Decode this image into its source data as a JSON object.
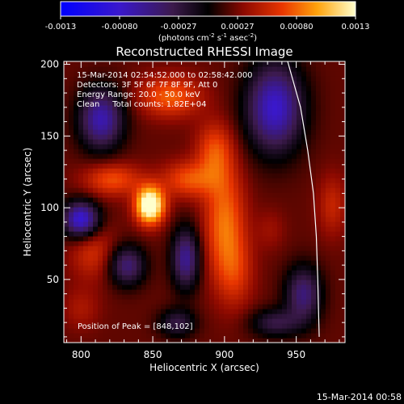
{
  "colorbar": {
    "tick_labels": [
      "-0.0013",
      "-0.00080",
      "-0.00027",
      "0.00027",
      "0.00080",
      "0.0013"
    ],
    "unit_label": "(photons cm-2 s-1 asec-2)",
    "range": [
      -0.0013,
      0.0013
    ]
  },
  "footer": {
    "timestamp": "15-Mar-2014 00:58"
  },
  "chart_data": {
    "type": "heatmap",
    "title": "Reconstructed RHESSI Image",
    "xlabel": "Heliocentric X (arcsec)",
    "ylabel": "Heliocentric Y (arcsec)",
    "xlim": [
      788,
      984
    ],
    "ylim": [
      6,
      202
    ],
    "xticks": [
      "800",
      "850",
      "900",
      "950"
    ],
    "yticks": [
      "50",
      "100",
      "150",
      "200"
    ],
    "xtick_values": [
      800,
      850,
      900,
      950
    ],
    "ytick_values": [
      50,
      100,
      150,
      200
    ],
    "annotations": [
      "15-Mar-2014 02:54:52.000 to 02:58:42.000",
      "Detectors: 3F 5F 6F 7F 8F 9F, Att 0",
      "Energy Range: 20.0 - 50.0 keV",
      "Clean     Total counts: 1.82E+04"
    ],
    "peak_label": "Position of Peak = [848,102]",
    "peak": {
      "x": 848,
      "y": 102,
      "value": 0.0013
    },
    "sources": [
      {
        "x": 848,
        "y": 102,
        "sx": 7,
        "sy": 9,
        "amp": 0.00135
      },
      {
        "x": 822,
        "y": 120,
        "sx": 14,
        "sy": 8,
        "amp": 0.0005
      },
      {
        "x": 875,
        "y": 120,
        "sx": 13,
        "sy": 9,
        "amp": 0.0005
      },
      {
        "x": 900,
        "y": 90,
        "sx": 10,
        "sy": 28,
        "amp": 0.0006
      },
      {
        "x": 893,
        "y": 140,
        "sx": 9,
        "sy": 14,
        "amp": 0.00045
      },
      {
        "x": 862,
        "y": 178,
        "sx": 15,
        "sy": 10,
        "amp": 0.00055
      },
      {
        "x": 808,
        "y": 70,
        "sx": 11,
        "sy": 14,
        "amp": 0.00035
      },
      {
        "x": 800,
        "y": 30,
        "sx": 9,
        "sy": 10,
        "amp": 0.0002
      },
      {
        "x": 908,
        "y": 55,
        "sx": 9,
        "sy": 18,
        "amp": 0.0003
      },
      {
        "x": 975,
        "y": 102,
        "sx": 7,
        "sy": 15,
        "amp": 0.0003
      },
      {
        "x": 932,
        "y": 85,
        "sx": 7,
        "sy": 10,
        "amp": 0.00015
      },
      {
        "x": 800,
        "y": 92,
        "sx": 9,
        "sy": 9,
        "amp": -0.0011
      },
      {
        "x": 814,
        "y": 162,
        "sx": 11,
        "sy": 15,
        "amp": -0.0009
      },
      {
        "x": 832,
        "y": 60,
        "sx": 9,
        "sy": 10,
        "amp": -0.0007
      },
      {
        "x": 873,
        "y": 65,
        "sx": 7,
        "sy": 15,
        "amp": -0.0008
      },
      {
        "x": 935,
        "y": 170,
        "sx": 14,
        "sy": 22,
        "amp": -0.001
      },
      {
        "x": 955,
        "y": 40,
        "sx": 9,
        "sy": 14,
        "amp": -0.0007
      },
      {
        "x": 867,
        "y": 20,
        "sx": 9,
        "sy": 7,
        "amp": -0.0005
      },
      {
        "x": 935,
        "y": 20,
        "sx": 12,
        "sy": 7,
        "amp": -0.0005
      }
    ],
    "limb_arc": [
      [
        944,
        202
      ],
      [
        953,
        170
      ],
      [
        958,
        140
      ],
      [
        962,
        110
      ],
      [
        964,
        80
      ],
      [
        965,
        50
      ],
      [
        966,
        10
      ]
    ],
    "grid": false
  }
}
